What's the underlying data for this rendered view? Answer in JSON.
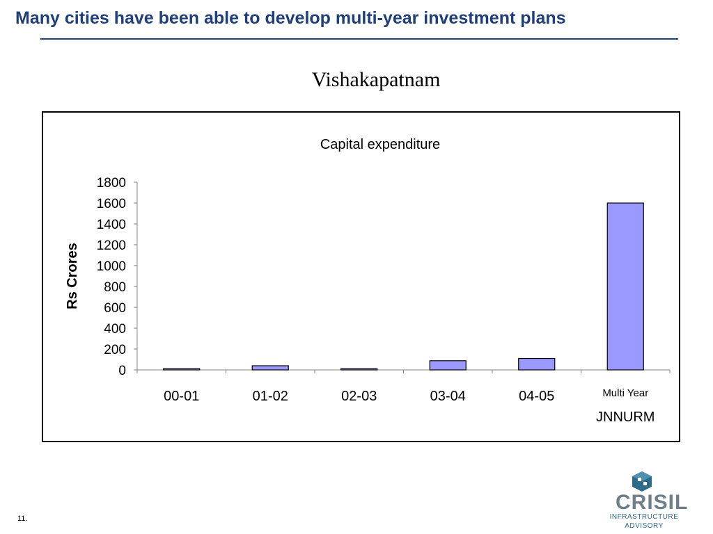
{
  "slide": {
    "title": "Many cities have been able to develop multi-year investment plans",
    "subtitle": "Vishakapatnam",
    "page_number": "11."
  },
  "colors": {
    "title": "#1f3f7a",
    "bar_fill": "#9999ff",
    "bar_stroke": "#000000",
    "logo_icon": "#2e6a89"
  },
  "logo": {
    "word": "CRISIL",
    "line1": "INFRASTRUCTURE",
    "line2": "ADVISORY",
    "icon": "crisil-cube-icon"
  },
  "chart_data": {
    "type": "bar",
    "title": "Capital expenditure",
    "xlabel": "",
    "ylabel": "Rs Crores",
    "categories": [
      "00-01",
      "01-02",
      "02-03",
      "03-04",
      "04-05",
      "Multi Year"
    ],
    "category_group_label": "JNNURM",
    "values": [
      12,
      40,
      12,
      88,
      110,
      1600
    ],
    "ylim": [
      0,
      1800
    ],
    "yticks": [
      0,
      200,
      400,
      600,
      800,
      1000,
      1200,
      1400,
      1600,
      1800
    ],
    "grid": false,
    "legend": "none"
  }
}
